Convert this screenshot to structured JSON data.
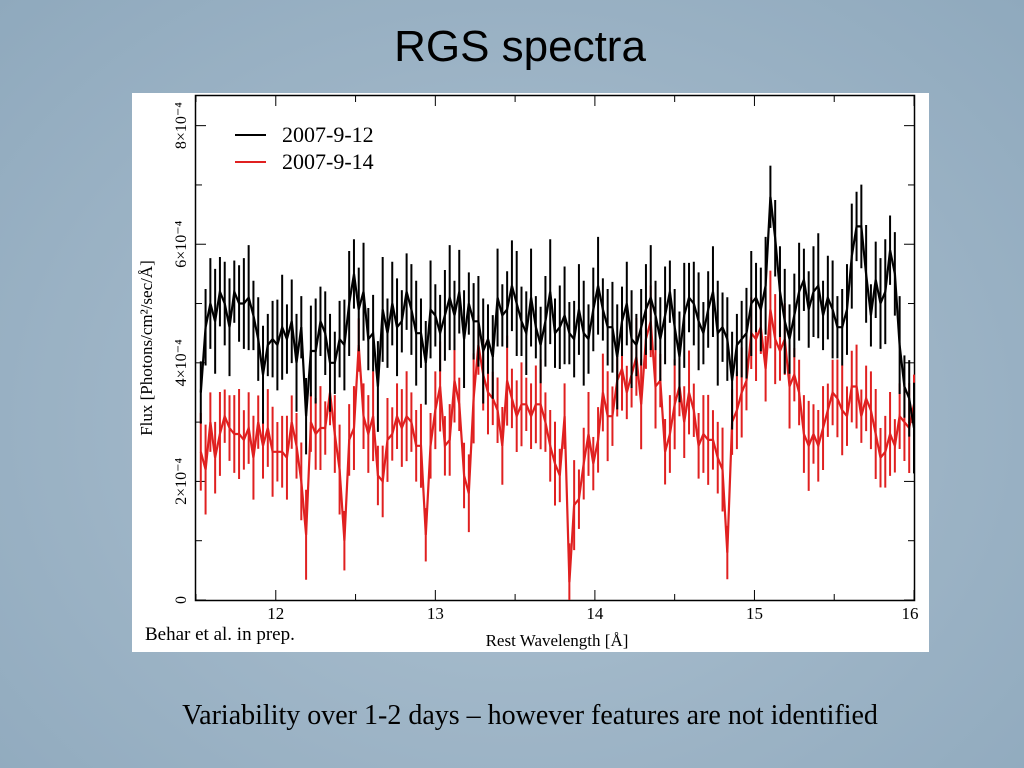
{
  "slide": {
    "title": "RGS spectra",
    "credit": "Behar et al. in prep.",
    "caption": "Variability over 1-2 days – however features are not identified"
  },
  "chart_data": {
    "type": "line",
    "title": "",
    "xlabel": "Rest Wavelength [Å]",
    "ylabel": "Flux [Photons/cm²/sec/Å]",
    "xlim": [
      11.5,
      16.0
    ],
    "ylim": [
      0,
      0.00085
    ],
    "x_ticks": [
      {
        "value": 12,
        "label": "12"
      },
      {
        "value": 13,
        "label": "13"
      },
      {
        "value": 14,
        "label": "14"
      },
      {
        "value": 15,
        "label": "15"
      },
      {
        "value": 16,
        "label": "16"
      }
    ],
    "y_ticks": [
      {
        "value": 0,
        "label": "0"
      },
      {
        "value": 0.0002,
        "label": "2×10⁻⁴"
      },
      {
        "value": 0.0004,
        "label": "4×10⁻⁴"
      },
      {
        "value": 0.0006,
        "label": "6×10⁻⁴"
      },
      {
        "value": 0.0008,
        "label": "8×10⁻⁴"
      }
    ],
    "legend_position": "top-left",
    "x": [
      11.53,
      11.56,
      11.59,
      11.62,
      11.65,
      11.68,
      11.71,
      11.74,
      11.77,
      11.8,
      11.83,
      11.86,
      11.89,
      11.92,
      11.95,
      11.98,
      12.01,
      12.04,
      12.07,
      12.1,
      12.13,
      12.16,
      12.19,
      12.22,
      12.25,
      12.28,
      12.31,
      12.34,
      12.37,
      12.4,
      12.43,
      12.46,
      12.49,
      12.52,
      12.55,
      12.58,
      12.61,
      12.64,
      12.67,
      12.7,
      12.73,
      12.76,
      12.79,
      12.82,
      12.85,
      12.88,
      12.91,
      12.94,
      12.97,
      13.0,
      13.03,
      13.06,
      13.09,
      13.12,
      13.15,
      13.18,
      13.21,
      13.24,
      13.27,
      13.3,
      13.33,
      13.36,
      13.39,
      13.42,
      13.45,
      13.48,
      13.51,
      13.54,
      13.57,
      13.6,
      13.63,
      13.66,
      13.69,
      13.72,
      13.75,
      13.78,
      13.81,
      13.84,
      13.87,
      13.9,
      13.93,
      13.96,
      13.99,
      14.02,
      14.05,
      14.08,
      14.11,
      14.14,
      14.17,
      14.2,
      14.23,
      14.26,
      14.29,
      14.32,
      14.35,
      14.38,
      14.41,
      14.44,
      14.47,
      14.5,
      14.53,
      14.56,
      14.59,
      14.62,
      14.65,
      14.68,
      14.71,
      14.74,
      14.77,
      14.8,
      14.83,
      14.86,
      14.89,
      14.92,
      14.95,
      14.98,
      15.01,
      15.04,
      15.07,
      15.1,
      15.13,
      15.16,
      15.19,
      15.22,
      15.25,
      15.28,
      15.31,
      15.34,
      15.37,
      15.4,
      15.43,
      15.46,
      15.49,
      15.52,
      15.55,
      15.58,
      15.61,
      15.64,
      15.67,
      15.7,
      15.73,
      15.76,
      15.79,
      15.82,
      15.85,
      15.88,
      15.91,
      15.94,
      15.97,
      16.0
    ],
    "series": [
      {
        "name": "2007-9-12",
        "color": "#000000",
        "values": [
          0.00035,
          0.00046,
          0.0005,
          0.00047,
          0.00052,
          0.0005,
          0.00046,
          0.00052,
          0.0005,
          0.0005,
          0.00051,
          0.00048,
          0.00044,
          0.00038,
          0.00043,
          0.00044,
          0.00043,
          0.00046,
          0.00044,
          0.00047,
          0.0004,
          0.00046,
          0.00031,
          0.00042,
          0.00042,
          0.00047,
          0.00045,
          0.0004,
          0.0004,
          0.00044,
          0.00043,
          0.0005,
          0.00055,
          0.00049,
          0.00052,
          0.00044,
          0.00045,
          0.00036,
          0.00049,
          0.00045,
          0.0005,
          0.00046,
          0.00047,
          0.00052,
          0.00049,
          0.00045,
          0.00045,
          0.0004,
          0.00049,
          0.00048,
          0.00045,
          0.00048,
          0.00051,
          0.00048,
          0.00052,
          0.00044,
          0.0005,
          0.00047,
          0.00047,
          0.00042,
          0.00044,
          0.00041,
          0.00051,
          0.00048,
          0.00049,
          0.00053,
          0.0005,
          0.00047,
          0.00045,
          0.00051,
          0.00046,
          0.00043,
          0.00047,
          0.00052,
          0.00045,
          0.00046,
          0.00048,
          0.00045,
          0.00044,
          0.00049,
          0.00045,
          0.00044,
          0.00049,
          0.00053,
          0.00049,
          0.00046,
          0.00046,
          0.00041,
          0.00047,
          0.0005,
          0.00044,
          0.00043,
          0.00046,
          0.00049,
          0.00051,
          0.00048,
          0.00044,
          0.00048,
          0.00052,
          0.00046,
          0.00041,
          0.00048,
          0.00051,
          0.0005,
          0.00047,
          0.00045,
          0.00049,
          0.00052,
          0.00045,
          0.00046,
          0.00044,
          0.00037,
          0.00043,
          0.00044,
          0.00045,
          0.0005,
          0.00051,
          0.00049,
          0.00053,
          0.00068,
          0.00061,
          0.00052,
          0.00047,
          0.00044,
          0.00048,
          0.00052,
          0.00054,
          0.00049,
          0.00052,
          0.00053,
          0.00048,
          0.00051,
          0.00049,
          0.00046,
          0.00046,
          0.00049,
          0.00058,
          0.00063,
          0.00063,
          0.00055,
          0.00048,
          0.00054,
          0.0005,
          0.00052,
          0.00059,
          0.00055,
          0.00043,
          0.00036,
          0.00034,
          0.00029
        ]
      },
      {
        "name": "2007-9-14",
        "color": "#e02020",
        "values": [
          0.00025,
          0.00022,
          0.0003,
          0.00024,
          0.00028,
          0.00031,
          0.00029,
          0.00028,
          0.00028,
          0.00027,
          0.00029,
          0.00024,
          0.0003,
          0.00026,
          0.00029,
          0.00025,
          0.00025,
          0.00025,
          0.00024,
          0.0003,
          0.00026,
          0.0002,
          0.00011,
          0.0003,
          0.00028,
          0.00029,
          0.00029,
          0.00035,
          0.00028,
          0.00022,
          0.0001,
          0.00027,
          0.00029,
          0.00043,
          0.00031,
          0.00028,
          0.00031,
          0.00021,
          0.0002,
          0.00027,
          0.00028,
          0.00031,
          0.00029,
          0.00031,
          0.0003,
          0.00026,
          0.00026,
          0.00011,
          0.00026,
          0.00032,
          0.00036,
          0.00026,
          0.00027,
          0.00037,
          0.00033,
          0.00021,
          0.00018,
          0.00034,
          0.00043,
          0.00038,
          0.00035,
          0.00034,
          0.00032,
          0.00026,
          0.00037,
          0.00034,
          0.00031,
          0.00033,
          0.00033,
          0.00031,
          0.00033,
          0.00033,
          0.0003,
          0.00026,
          0.00023,
          0.00021,
          0.00031,
          3e-05,
          0.00016,
          0.00017,
          0.00023,
          0.00028,
          0.00023,
          0.00027,
          0.00035,
          0.00031,
          0.00031,
          0.00037,
          0.00039,
          0.00035,
          0.00038,
          0.00041,
          0.00033,
          0.00044,
          0.00047,
          0.00036,
          0.00037,
          0.00025,
          0.00028,
          0.00033,
          0.00036,
          0.0003,
          0.00035,
          0.00032,
          0.00026,
          0.00028,
          0.00027,
          0.00027,
          0.00024,
          0.00022,
          8e-05,
          0.0003,
          0.00032,
          0.00035,
          0.00037,
          0.00045,
          0.00044,
          0.00046,
          0.00039,
          0.00049,
          0.00044,
          0.00042,
          0.00044,
          0.00036,
          0.00038,
          0.00035,
          0.00028,
          0.00026,
          0.00028,
          0.00026,
          0.00029,
          0.00032,
          0.00035,
          0.00034,
          0.00032,
          0.00031,
          0.00036,
          0.00036,
          0.00031,
          0.00034,
          0.00032,
          0.00028,
          0.00024,
          0.00025,
          0.00028,
          0.00026,
          0.00031,
          0.0003,
          0.00029,
          0.00033
        ]
      }
    ],
    "errors": [
      {
        "name": "2007-9-12",
        "halfwidth": 7e-05
      },
      {
        "name": "2007-9-14",
        "halfwidth": 6e-05
      }
    ]
  }
}
